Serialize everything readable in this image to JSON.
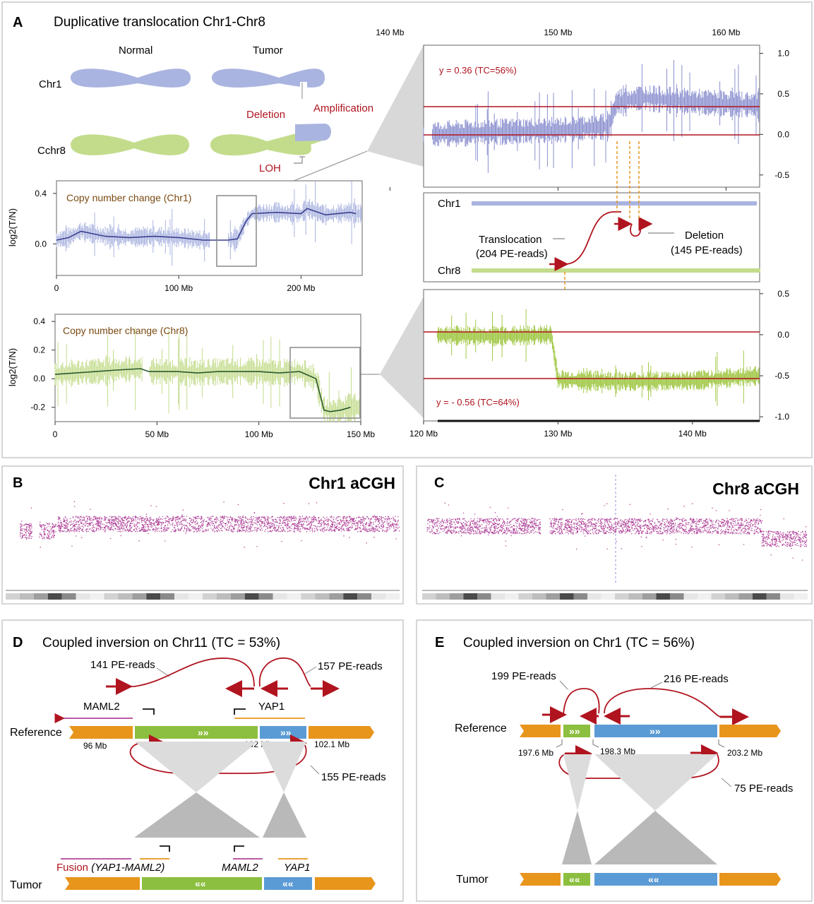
{
  "colors": {
    "chr1": "#aab4e0",
    "chr8": "#c3dc8c",
    "chr1_line": "#3b3f8f",
    "chr8_line": "#2c5a2e",
    "red": "#b0141f",
    "orange": "#e8951c",
    "green": "#8cbf3f",
    "blue": "#5b9bd5",
    "magenta": "#b0439a"
  },
  "panelA": {
    "letter": "A",
    "title": "Duplicative translocation Chr1-Chr8",
    "normal_label": "Normal",
    "tumor_label": "Tumor",
    "chr1_label": "Chr1",
    "chr8_label": "Cchr8",
    "deletion_label": "Deletion",
    "amplification_label": "Amplification",
    "loh_label": "LOH",
    "translocation_label": "Translocation",
    "translocation_reads": "(204 PE-reads)",
    "deletion_event_label": "Deletion",
    "deletion_reads": "(145 PE-reads)",
    "track_chr1": "Chr1",
    "track_chr8": "Chr8",
    "y_line_top": "y = 0.36 (TC=56%)",
    "y_line_bottom": "y = - 0.56 (TC=64%)"
  },
  "panelB": {
    "letter": "B",
    "title": "Chr1 aCGH"
  },
  "panelC": {
    "letter": "C",
    "title": "Chr8 aCGH"
  },
  "panelD": {
    "letter": "D",
    "title": "Coupled inversion on Chr11 (TC = 53%)",
    "reads_a": "141 PE-reads",
    "reads_b": "157 PE-reads",
    "reads_c": "155 PE-reads",
    "gene_1": "MAML2",
    "gene_2": "YAP1",
    "reference_label": "Reference",
    "tumor_label": "Tumor",
    "pos_1": "96 Mb",
    "pos_2": "102 Mb",
    "pos_3": "102.1 Mb",
    "fusion_word": "Fusion",
    "fusion_genes": "(YAP1-MAML2)",
    "tumor_gene_1": "MAML2",
    "tumor_gene_2": "YAP1"
  },
  "panelE": {
    "letter": "E",
    "title": "Coupled inversion on Chr1 (TC = 56%)",
    "reads_a": "199 PE-reads",
    "reads_b": "216 PE-reads",
    "reads_c": "75 PE-reads",
    "reference_label": "Reference",
    "tumor_label": "Tumor",
    "pos_1": "197.6 Mb",
    "pos_2": "198.3 Mb",
    "pos_3": "203.2 Mb"
  },
  "chart_data": [
    {
      "type": "line",
      "title": "Copy number change (Chr1)",
      "ylabel": "log2(T/N)",
      "xlabel": "",
      "x_tick_labels": [
        "0",
        "100 Mb",
        "200 Mb"
      ],
      "y_tick_labels": [
        "0.4",
        "0.0"
      ],
      "ylim": [
        -0.25,
        0.5
      ],
      "xlim": [
        0,
        250
      ],
      "series": [
        {
          "values_x": [
            0,
            10,
            20,
            40,
            60,
            80,
            100,
            120,
            140,
            148,
            155,
            160,
            180,
            200,
            205,
            220,
            240,
            245
          ],
          "values_y": [
            0.03,
            0.05,
            0.1,
            0.06,
            0.05,
            0.06,
            0.05,
            0.03,
            0.03,
            0.04,
            0.18,
            0.24,
            0.25,
            0.24,
            0.28,
            0.23,
            0.25,
            0.24
          ]
        }
      ]
    },
    {
      "type": "line",
      "title": "Copy number change (Chr8)",
      "ylabel": "log2(T/N)",
      "xlabel": "",
      "x_tick_labels": [
        "0",
        "50 Mb",
        "100 Mb",
        "150 Mb"
      ],
      "y_tick_labels": [
        "0.4",
        "0.2",
        "0.0",
        "-0.2"
      ],
      "ylim": [
        -0.3,
        0.45
      ],
      "xlim": [
        0,
        150
      ],
      "series": [
        {
          "values_x": [
            0,
            10,
            20,
            30,
            42,
            46,
            60,
            70,
            80,
            90,
            100,
            110,
            120,
            128,
            132,
            135,
            140,
            145
          ],
          "values_y": [
            0.03,
            0.04,
            0.05,
            0.06,
            0.07,
            0.05,
            0.05,
            0.04,
            0.05,
            0.05,
            0.05,
            0.04,
            0.05,
            0.0,
            -0.22,
            -0.23,
            -0.22,
            -0.2
          ]
        }
      ]
    },
    {
      "type": "line",
      "title": "",
      "x_tick_labels": [
        "140 Mb",
        "150 Mb",
        "160 Mb"
      ],
      "y_tick_labels": [
        "1.0",
        "0.5",
        "0.0",
        "-0.5"
      ],
      "xlim": [
        142,
        162
      ],
      "ylim": [
        -0.65,
        1.1
      ],
      "series": [
        {
          "values_x": [
            142.5,
            146,
            150,
            153,
            153.5,
            155,
            158,
            162
          ],
          "values_y": [
            0.0,
            0.03,
            0.05,
            0.1,
            0.4,
            0.45,
            0.4,
            0.36
          ]
        }
      ]
    },
    {
      "type": "line",
      "title": "",
      "x_tick_labels": [
        "120 Mb",
        "130 Mb",
        "140 Mb"
      ],
      "y_tick_labels": [
        "0.5",
        "0.0",
        "-0.5",
        "-1.0"
      ],
      "xlim": [
        120,
        145
      ],
      "ylim": [
        -1.05,
        0.55
      ],
      "series": [
        {
          "values_x": [
            120,
            125,
            129.5,
            130,
            135,
            140,
            145
          ],
          "values_y": [
            0.0,
            -0.02,
            0.0,
            -0.55,
            -0.57,
            -0.56,
            -0.5
          ]
        }
      ]
    }
  ]
}
